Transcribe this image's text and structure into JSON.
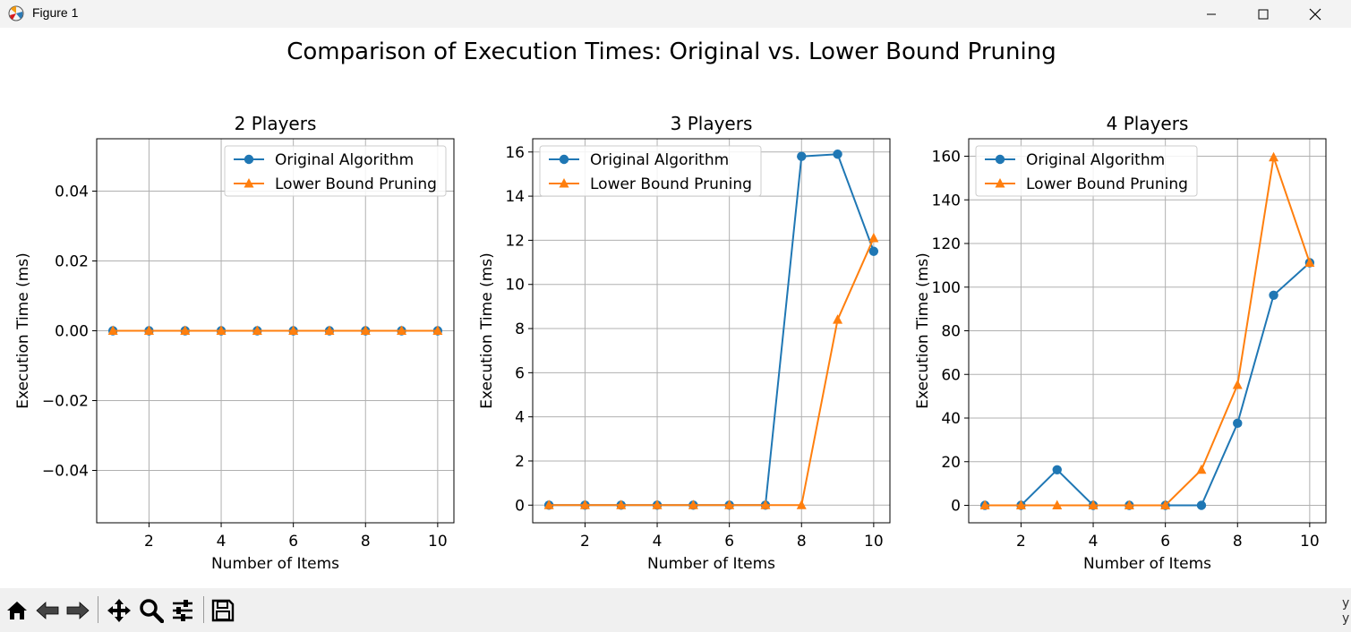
{
  "window": {
    "title": "Figure 1"
  },
  "figure": {
    "suptitle": "Comparison of Execution Times: Original vs. Lower Bound Pruning"
  },
  "toolbar": {
    "buttons": [
      "home-icon",
      "back-icon",
      "forward-icon",
      "pan-icon",
      "zoom-icon",
      "configure-subplots-icon",
      "save-icon"
    ]
  },
  "edge_text": [
    "y",
    "y"
  ],
  "colors": {
    "original": "#1f77b4",
    "pruning": "#ff7f0e",
    "grid": "#b0b0b0"
  },
  "chart_data": [
    {
      "type": "line",
      "title": "2 Players",
      "xlabel": "Number of Items",
      "ylabel": "Execution Time (ms)",
      "xlim": [
        0.55,
        10.45
      ],
      "ylim": [
        -0.055,
        0.055
      ],
      "xticks": [
        2,
        4,
        6,
        8,
        10
      ],
      "yticks": [
        -0.04,
        -0.02,
        0.0,
        0.02,
        0.04
      ],
      "ytick_labels": [
        "−0.04",
        "−0.02",
        "0.00",
        "0.02",
        "0.04"
      ],
      "grid": true,
      "legend": "upper right",
      "x": [
        1,
        2,
        3,
        4,
        5,
        6,
        7,
        8,
        9,
        10
      ],
      "series": [
        {
          "name": "Original Algorithm",
          "marker": "circle",
          "values": [
            0,
            0,
            0,
            0,
            0,
            0,
            0,
            0,
            0,
            0
          ]
        },
        {
          "name": "Lower Bound Pruning",
          "marker": "triangle",
          "values": [
            0,
            0,
            0,
            0,
            0,
            0,
            0,
            0,
            0,
            0
          ]
        }
      ]
    },
    {
      "type": "line",
      "title": "3 Players",
      "xlabel": "Number of Items",
      "ylabel": "Execution Time (ms)",
      "xlim": [
        0.55,
        10.45
      ],
      "ylim": [
        -0.8,
        16.6
      ],
      "xticks": [
        2,
        4,
        6,
        8,
        10
      ],
      "yticks": [
        0,
        2,
        4,
        6,
        8,
        10,
        12,
        14,
        16
      ],
      "ytick_labels": [
        "0",
        "2",
        "4",
        "6",
        "8",
        "10",
        "12",
        "14",
        "16"
      ],
      "grid": true,
      "legend": "upper left",
      "x": [
        1,
        2,
        3,
        4,
        5,
        6,
        7,
        8,
        9,
        10
      ],
      "series": [
        {
          "name": "Original Algorithm",
          "marker": "circle",
          "values": [
            0,
            0,
            0,
            0,
            0,
            0,
            0,
            15.8,
            15.9,
            11.5
          ]
        },
        {
          "name": "Lower Bound Pruning",
          "marker": "triangle",
          "values": [
            0,
            0,
            0,
            0,
            0,
            0,
            0,
            0,
            8.4,
            12.1
          ]
        }
      ]
    },
    {
      "type": "line",
      "title": "4 Players",
      "xlabel": "Number of Items",
      "ylabel": "Execution Time (ms)",
      "xlim": [
        0.55,
        10.45
      ],
      "ylim": [
        -8,
        168
      ],
      "xticks": [
        2,
        4,
        6,
        8,
        10
      ],
      "yticks": [
        0,
        20,
        40,
        60,
        80,
        100,
        120,
        140,
        160
      ],
      "ytick_labels": [
        "0",
        "20",
        "40",
        "60",
        "80",
        "100",
        "120",
        "140",
        "160"
      ],
      "grid": true,
      "legend": "upper left",
      "x": [
        1,
        2,
        3,
        4,
        5,
        6,
        7,
        8,
        9,
        10
      ],
      "series": [
        {
          "name": "Original Algorithm",
          "marker": "circle",
          "values": [
            0,
            0,
            16.3,
            0,
            0,
            0,
            0,
            37.6,
            96.3,
            111.2
          ]
        },
        {
          "name": "Lower Bound Pruning",
          "marker": "triangle",
          "values": [
            0,
            0,
            0,
            0,
            0,
            0,
            16.3,
            55.2,
            159.5,
            111.2
          ]
        }
      ]
    }
  ]
}
